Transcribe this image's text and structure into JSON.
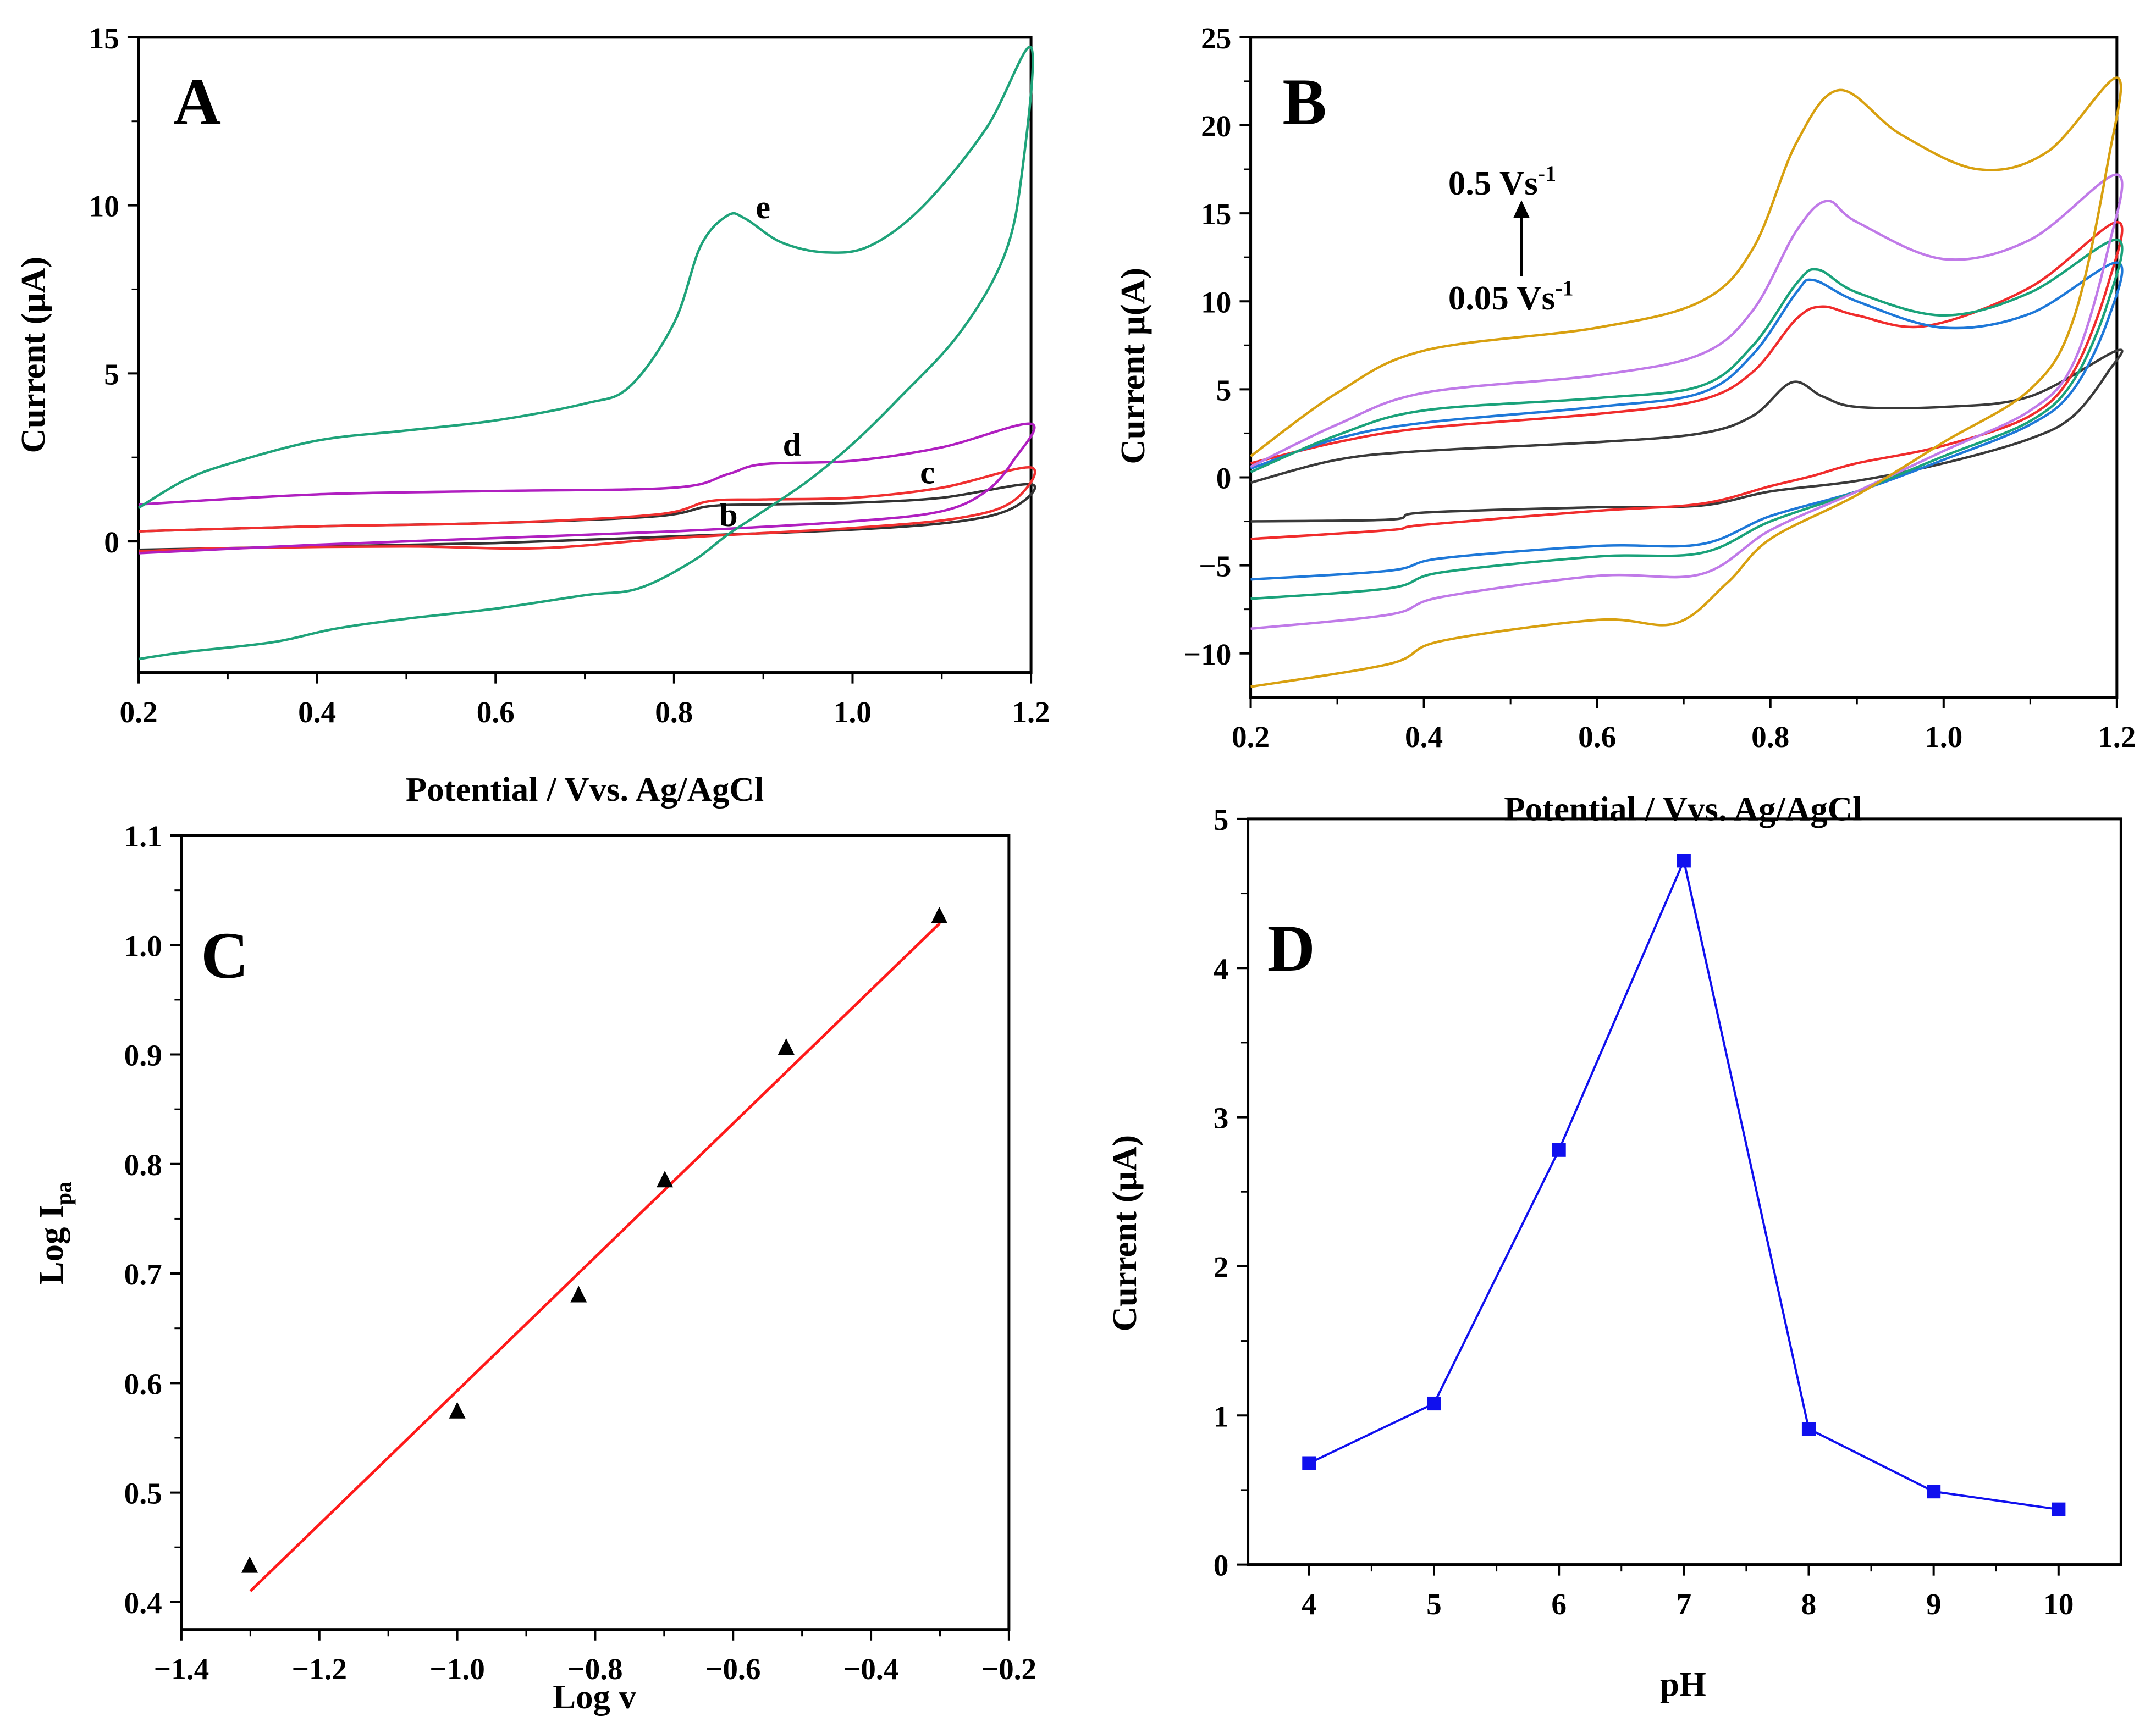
{
  "chart_data": [
    {
      "panel": "A",
      "type": "line",
      "xlabel": "Potential / Vvs. Ag/AgCl",
      "ylabel": "Current (µA)",
      "xlim": [
        0.2,
        1.2
      ],
      "ylim": [
        -3.9,
        15
      ],
      "xticks": [
        0.2,
        0.4,
        0.6,
        0.8,
        1.0,
        1.2
      ],
      "xtick_labels": [
        "0.2",
        "0.4",
        "0.6",
        "0.8",
        "1.0",
        "1.2"
      ],
      "yticks": [
        0,
        5,
        10,
        15
      ],
      "ytick_labels": [
        "0",
        "5",
        "10",
        "15"
      ],
      "series": [
        {
          "name": "b",
          "color": "#333333",
          "points": [
            [
              0.2,
              0.3
            ],
            [
              0.4,
              0.45
            ],
            [
              0.6,
              0.55
            ],
            [
              0.78,
              0.75
            ],
            [
              0.84,
              1.05
            ],
            [
              0.9,
              1.1
            ],
            [
              1.0,
              1.15
            ],
            [
              1.1,
              1.3
            ],
            [
              1.2,
              1.7
            ],
            [
              1.18,
              1.0
            ],
            [
              1.12,
              0.6
            ],
            [
              1.0,
              0.35
            ],
            [
              0.8,
              0.15
            ],
            [
              0.6,
              -0.05
            ],
            [
              0.4,
              -0.15
            ],
            [
              0.2,
              -0.25
            ]
          ]
        },
        {
          "name": "c",
          "color": "#f03030",
          "points": [
            [
              0.2,
              0.3
            ],
            [
              0.4,
              0.45
            ],
            [
              0.6,
              0.55
            ],
            [
              0.78,
              0.8
            ],
            [
              0.84,
              1.2
            ],
            [
              0.9,
              1.25
            ],
            [
              1.0,
              1.3
            ],
            [
              1.1,
              1.6
            ],
            [
              1.2,
              2.2
            ],
            [
              1.18,
              1.2
            ],
            [
              1.12,
              0.7
            ],
            [
              1.0,
              0.4
            ],
            [
              0.8,
              0.1
            ],
            [
              0.65,
              -0.2
            ],
            [
              0.5,
              -0.15
            ],
            [
              0.3,
              -0.2
            ],
            [
              0.2,
              -0.3
            ]
          ]
        },
        {
          "name": "d",
          "color": "#b01fc0",
          "points": [
            [
              0.2,
              1.1
            ],
            [
              0.4,
              1.4
            ],
            [
              0.6,
              1.5
            ],
            [
              0.8,
              1.6
            ],
            [
              0.86,
              2.0
            ],
            [
              0.9,
              2.3
            ],
            [
              1.0,
              2.4
            ],
            [
              1.1,
              2.8
            ],
            [
              1.2,
              3.5
            ],
            [
              1.18,
              2.4
            ],
            [
              1.15,
              1.5
            ],
            [
              1.1,
              0.9
            ],
            [
              1.0,
              0.6
            ],
            [
              0.8,
              0.3
            ],
            [
              0.6,
              0.1
            ],
            [
              0.4,
              -0.1
            ],
            [
              0.2,
              -0.35
            ]
          ]
        },
        {
          "name": "e",
          "color": "#1fa37a",
          "points": [
            [
              0.2,
              1.0
            ],
            [
              0.25,
              1.8
            ],
            [
              0.3,
              2.3
            ],
            [
              0.4,
              3.0
            ],
            [
              0.5,
              3.3
            ],
            [
              0.6,
              3.6
            ],
            [
              0.7,
              4.1
            ],
            [
              0.75,
              4.6
            ],
            [
              0.8,
              6.5
            ],
            [
              0.83,
              8.8
            ],
            [
              0.86,
              9.7
            ],
            [
              0.88,
              9.6
            ],
            [
              0.92,
              8.9
            ],
            [
              0.97,
              8.6
            ],
            [
              1.02,
              8.8
            ],
            [
              1.08,
              10.0
            ],
            [
              1.15,
              12.3
            ],
            [
              1.2,
              14.7
            ],
            [
              1.19,
              11.0
            ],
            [
              1.17,
              8.5
            ],
            [
              1.12,
              6.2
            ],
            [
              1.05,
              4.2
            ],
            [
              1.0,
              2.9
            ],
            [
              0.95,
              1.8
            ],
            [
              0.9,
              0.9
            ],
            [
              0.86,
              0.2
            ],
            [
              0.82,
              -0.6
            ],
            [
              0.76,
              -1.4
            ],
            [
              0.7,
              -1.6
            ],
            [
              0.6,
              -2.0
            ],
            [
              0.5,
              -2.3
            ],
            [
              0.42,
              -2.6
            ],
            [
              0.35,
              -3.0
            ],
            [
              0.25,
              -3.3
            ],
            [
              0.2,
              -3.5
            ]
          ]
        }
      ]
    },
    {
      "panel": "B",
      "type": "line",
      "xlabel": "Potential / Vvs. Ag/AgCl",
      "ylabel": "Current µ(A)",
      "xlim": [
        0.2,
        1.2
      ],
      "ylim": [
        -12.5,
        25
      ],
      "xticks": [
        0.2,
        0.4,
        0.6,
        0.8,
        1.0,
        1.2
      ],
      "xtick_labels": [
        "0.2",
        "0.4",
        "0.6",
        "0.8",
        "1.0",
        "1.2"
      ],
      "yticks": [
        -10,
        -5,
        0,
        5,
        10,
        15,
        20,
        25
      ],
      "ytick_labels": [
        "−10",
        "−5",
        "0",
        "5",
        "10",
        "15",
        "20",
        "25"
      ],
      "annotation_top": {
        "base": "0.5 Vs",
        "sup": "-1"
      },
      "annotation_bottom": {
        "base": "0.05 Vs",
        "sup": "-1"
      },
      "series": [
        {
          "name": "0.05 Vs-1",
          "color": "#3a3a3a",
          "points": [
            [
              0.2,
              -0.3
            ],
            [
              0.3,
              1.0
            ],
            [
              0.4,
              1.5
            ],
            [
              0.6,
              2.0
            ],
            [
              0.72,
              2.5
            ],
            [
              0.78,
              3.5
            ],
            [
              0.825,
              5.4
            ],
            [
              0.86,
              4.6
            ],
            [
              0.9,
              4.0
            ],
            [
              1.0,
              4.0
            ],
            [
              1.1,
              4.6
            ],
            [
              1.2,
              7.2
            ],
            [
              1.19,
              6.0
            ],
            [
              1.15,
              3.5
            ],
            [
              1.1,
              2.2
            ],
            [
              1.0,
              0.8
            ],
            [
              0.9,
              -0.2
            ],
            [
              0.8,
              -0.8
            ],
            [
              0.72,
              -1.6
            ],
            [
              0.6,
              -1.7
            ],
            [
              0.4,
              -2.0
            ],
            [
              0.36,
              -2.4
            ],
            [
              0.2,
              -2.5
            ]
          ]
        },
        {
          "name": "red",
          "color": "#f02c2c",
          "points": [
            [
              0.2,
              0.8
            ],
            [
              0.3,
              2.0
            ],
            [
              0.4,
              2.8
            ],
            [
              0.6,
              3.6
            ],
            [
              0.72,
              4.4
            ],
            [
              0.78,
              6.0
            ],
            [
              0.83,
              9.0
            ],
            [
              0.86,
              9.7
            ],
            [
              0.9,
              9.2
            ],
            [
              0.98,
              8.6
            ],
            [
              1.1,
              10.8
            ],
            [
              1.2,
              14.5
            ],
            [
              1.19,
              11.0
            ],
            [
              1.15,
              6.0
            ],
            [
              1.1,
              3.5
            ],
            [
              1.0,
              1.8
            ],
            [
              0.9,
              0.8
            ],
            [
              0.85,
              0.1
            ],
            [
              0.8,
              -0.5
            ],
            [
              0.72,
              -1.5
            ],
            [
              0.6,
              -1.9
            ],
            [
              0.4,
              -2.7
            ],
            [
              0.36,
              -3.0
            ],
            [
              0.2,
              -3.5
            ]
          ]
        },
        {
          "name": "blue",
          "color": "#1e78d8",
          "points": [
            [
              0.2,
              0.5
            ],
            [
              0.3,
              2.2
            ],
            [
              0.4,
              3.1
            ],
            [
              0.6,
              4.0
            ],
            [
              0.72,
              4.8
            ],
            [
              0.78,
              7.0
            ],
            [
              0.83,
              10.5
            ],
            [
              0.85,
              11.2
            ],
            [
              0.9,
              10.0
            ],
            [
              1.0,
              8.5
            ],
            [
              1.1,
              9.3
            ],
            [
              1.2,
              12.2
            ],
            [
              1.19,
              9.0
            ],
            [
              1.15,
              5.0
            ],
            [
              1.1,
              3.0
            ],
            [
              1.0,
              1.0
            ],
            [
              0.9,
              -0.8
            ],
            [
              0.8,
              -2.2
            ],
            [
              0.72,
              -3.8
            ],
            [
              0.6,
              -3.9
            ],
            [
              0.42,
              -4.6
            ],
            [
              0.36,
              -5.3
            ],
            [
              0.2,
              -5.8
            ]
          ]
        },
        {
          "name": "green",
          "color": "#1aa27a",
          "points": [
            [
              0.2,
              0.3
            ],
            [
              0.3,
              2.4
            ],
            [
              0.4,
              3.8
            ],
            [
              0.6,
              4.5
            ],
            [
              0.72,
              5.2
            ],
            [
              0.78,
              7.5
            ],
            [
              0.83,
              11.0
            ],
            [
              0.855,
              11.8
            ],
            [
              0.9,
              10.5
            ],
            [
              1.0,
              9.2
            ],
            [
              1.1,
              10.5
            ],
            [
              1.2,
              13.5
            ],
            [
              1.19,
              10.0
            ],
            [
              1.15,
              5.5
            ],
            [
              1.1,
              3.2
            ],
            [
              1.0,
              1.2
            ],
            [
              0.9,
              -0.8
            ],
            [
              0.8,
              -2.5
            ],
            [
              0.72,
              -4.3
            ],
            [
              0.6,
              -4.5
            ],
            [
              0.42,
              -5.4
            ],
            [
              0.36,
              -6.3
            ],
            [
              0.2,
              -6.9
            ]
          ]
        },
        {
          "name": "violet",
          "color": "#c07ae8",
          "points": [
            [
              0.2,
              0.6
            ],
            [
              0.3,
              3.0
            ],
            [
              0.4,
              4.8
            ],
            [
              0.6,
              5.8
            ],
            [
              0.72,
              7.0
            ],
            [
              0.78,
              9.5
            ],
            [
              0.83,
              14.0
            ],
            [
              0.865,
              15.7
            ],
            [
              0.9,
              14.5
            ],
            [
              1.0,
              12.4
            ],
            [
              1.1,
              13.5
            ],
            [
              1.2,
              17.2
            ],
            [
              1.19,
              13.0
            ],
            [
              1.15,
              6.5
            ],
            [
              1.1,
              3.8
            ],
            [
              1.0,
              1.5
            ],
            [
              0.9,
              -0.8
            ],
            [
              0.8,
              -3.0
            ],
            [
              0.72,
              -5.5
            ],
            [
              0.6,
              -5.6
            ],
            [
              0.42,
              -6.8
            ],
            [
              0.36,
              -7.8
            ],
            [
              0.2,
              -8.6
            ]
          ]
        },
        {
          "name": "0.5 Vs-1",
          "color": "#d8a010",
          "points": [
            [
              0.2,
              1.2
            ],
            [
              0.3,
              4.8
            ],
            [
              0.4,
              7.2
            ],
            [
              0.6,
              8.5
            ],
            [
              0.72,
              10.0
            ],
            [
              0.78,
              13.0
            ],
            [
              0.83,
              19.0
            ],
            [
              0.88,
              22.0
            ],
            [
              0.95,
              19.5
            ],
            [
              1.04,
              17.5
            ],
            [
              1.12,
              18.5
            ],
            [
              1.2,
              22.7
            ],
            [
              1.19,
              18.0
            ],
            [
              1.15,
              9.0
            ],
            [
              1.1,
              5.0
            ],
            [
              1.0,
              2.0
            ],
            [
              0.9,
              -1.0
            ],
            [
              0.8,
              -3.5
            ],
            [
              0.75,
              -6.0
            ],
            [
              0.69,
              -8.3
            ],
            [
              0.6,
              -8.1
            ],
            [
              0.42,
              -9.3
            ],
            [
              0.36,
              -10.6
            ],
            [
              0.2,
              -11.9
            ]
          ]
        }
      ]
    },
    {
      "panel": "C",
      "type": "scatter",
      "xlabel": "Log v",
      "ylabel": {
        "base": "Log I",
        "sub": "pa"
      },
      "xlim": [
        -1.4,
        -0.2
      ],
      "ylim": [
        0.375,
        1.1
      ],
      "xticks": [
        -1.4,
        -1.2,
        -1.0,
        -0.8,
        -0.6,
        -0.4,
        -0.2
      ],
      "xtick_labels": [
        "−1.4",
        "−1.2",
        "−1.0",
        "−0.8",
        "−0.6",
        "−0.4",
        "−0.2"
      ],
      "yticks": [
        0.4,
        0.5,
        0.6,
        0.7,
        0.8,
        0.9,
        1.0,
        1.1
      ],
      "ytick_labels": [
        "0.4",
        "0.5",
        "0.6",
        "0.7",
        "0.8",
        "0.9",
        "1.0",
        "1.1"
      ],
      "points": {
        "x": [
          -1.301,
          -1.0,
          -0.824,
          -0.699,
          -0.523,
          -0.301
        ],
        "y": [
          0.433,
          0.574,
          0.68,
          0.785,
          0.906,
          1.026
        ],
        "color": "#000000"
      },
      "fit_line": {
        "x": [
          -1.3,
          -0.3
        ],
        "y": [
          0.41,
          1.02
        ],
        "color": "#ff1a1a"
      }
    },
    {
      "panel": "D",
      "type": "line",
      "xlabel": "pH",
      "ylabel": "Current (µA)",
      "xlim": [
        3.51,
        10.5
      ],
      "ylim": [
        0,
        5
      ],
      "xticks": [
        4,
        5,
        6,
        7,
        8,
        9,
        10
      ],
      "xtick_labels": [
        "4",
        "5",
        "6",
        "7",
        "8",
        "9",
        "10"
      ],
      "yticks": [
        0,
        1,
        2,
        3,
        4,
        5
      ],
      "ytick_labels": [
        "0",
        "1",
        "2",
        "3",
        "4",
        "5"
      ],
      "x": [
        4,
        5,
        6,
        7,
        8,
        9,
        10
      ],
      "y": [
        0.68,
        1.08,
        2.78,
        4.72,
        0.91,
        0.49,
        0.37
      ],
      "color": "#1010ee"
    }
  ]
}
